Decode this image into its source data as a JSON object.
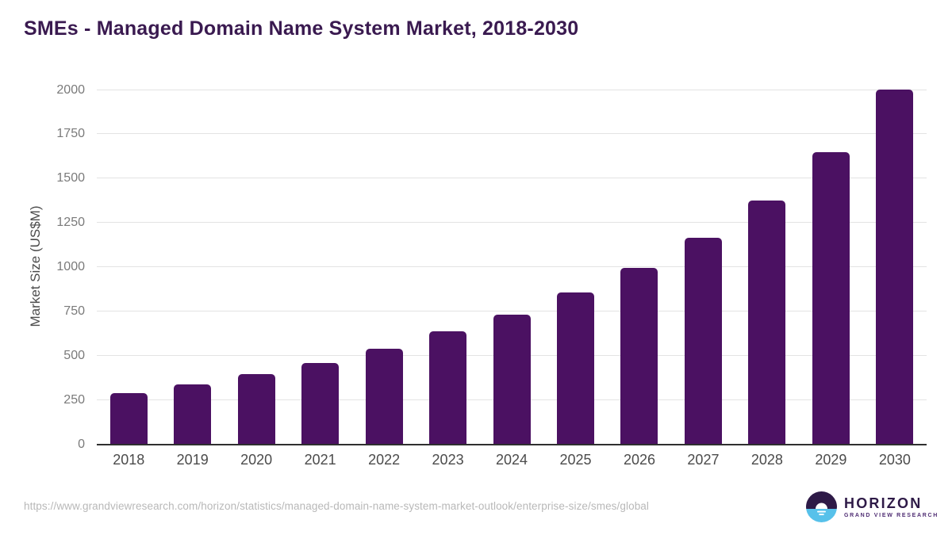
{
  "header": {
    "title": "SMEs - Managed Domain Name System Market, 2018-2030",
    "title_color": "#3a1a50"
  },
  "chart_data": {
    "type": "bar",
    "title": "SMEs - Managed Domain Name System Market, 2018-2030",
    "categories": [
      "2018",
      "2019",
      "2020",
      "2021",
      "2022",
      "2023",
      "2024",
      "2025",
      "2026",
      "2027",
      "2028",
      "2029",
      "2030"
    ],
    "values": [
      285,
      335,
      395,
      455,
      535,
      635,
      730,
      855,
      995,
      1165,
      1375,
      1645,
      2000
    ],
    "xlabel": "",
    "ylabel": "Market Size (US$M)",
    "ylim": [
      0,
      2000
    ],
    "yticks": [
      0,
      250,
      500,
      750,
      1000,
      1250,
      1500,
      1750,
      2000
    ],
    "grid": "horizontal",
    "legend": "none",
    "bar_color": "#4b1162",
    "axis_line_color": "#2f2f2f",
    "gridline_color": "#e3e3e3",
    "ytick_label_color": "#7a7a7a",
    "xtick_label_color": "#4b4b4b"
  },
  "footer": {
    "source_url": "https://www.grandviewresearch.com/horizon/statistics/managed-domain-name-system-market-outlook/enterprise-size/smes/global",
    "logo": {
      "brand": "HORIZON",
      "tagline": "GRAND VIEW RESEARCH",
      "icon": "horizon-sunrise-circle-icon",
      "brand_color": "#2e1a47",
      "tagline_color": "#4f2d73",
      "icon_purple": "#2e1a47",
      "icon_blue": "#57c1ea"
    }
  }
}
